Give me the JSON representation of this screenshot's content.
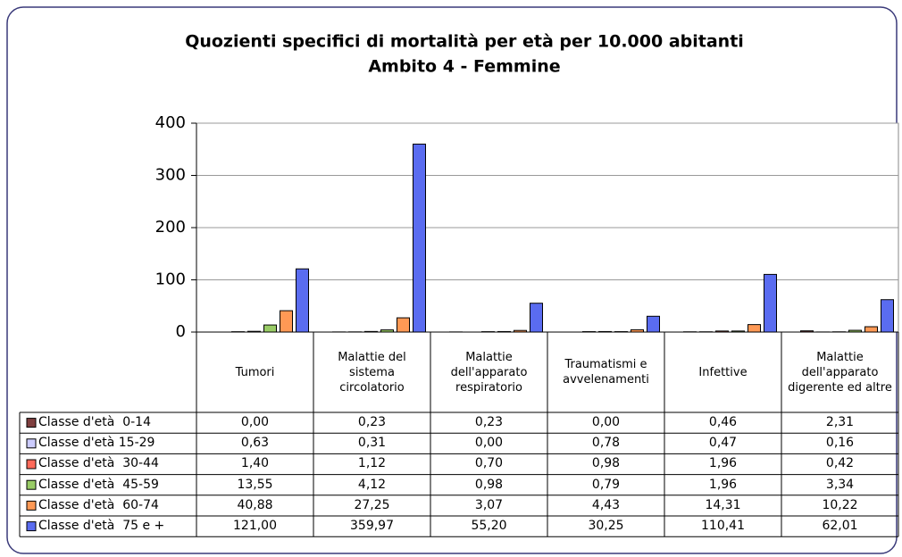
{
  "chart_data": {
    "type": "bar",
    "title": "Quozienti specifici di mortalità per età per 10.000 abitanti",
    "subtitle": "Ambito 4 - Femmine",
    "categories": [
      "Tumori",
      "Malattie del sistema circolatorio",
      "Malattie dell'apparato respiratorio",
      "Traumatismi e avvelenamenti",
      "Infettive",
      "Malattie dell'apparato digerente ed altre"
    ],
    "series": [
      {
        "name": "Classe d'età  0-14",
        "color": "#7f3f3f",
        "values": [
          0,
          0.23,
          0.23,
          0,
          0.46,
          2.31
        ],
        "value_labels": [
          "0,00",
          "0,23",
          "0,23",
          "0,00",
          "0,46",
          "2,31"
        ]
      },
      {
        "name": "Classe d'età 15-29",
        "color": "#ccccff",
        "values": [
          0.63,
          0.31,
          0,
          0.78,
          0.47,
          0.16
        ],
        "value_labels": [
          "0,63",
          "0,31",
          "0,00",
          "0,78",
          "0,47",
          "0,16"
        ]
      },
      {
        "name": "Classe d'età  30-44",
        "color": "#ff6a5a",
        "values": [
          1.4,
          1.12,
          0.7,
          0.98,
          1.96,
          0.42
        ],
        "value_labels": [
          "1,40",
          "1,12",
          "0,70",
          "0,98",
          "1,96",
          "0,42"
        ]
      },
      {
        "name": "Classe d'età  45-59",
        "color": "#99cc66",
        "values": [
          13.55,
          4.12,
          0.98,
          0.79,
          1.96,
          3.34
        ],
        "value_labels": [
          "13,55",
          "4,12",
          "0,98",
          "0,79",
          "1,96",
          "3,34"
        ]
      },
      {
        "name": "Classe d'età  60-74",
        "color": "#ff9955",
        "values": [
          40.88,
          27.25,
          3.07,
          4.43,
          14.31,
          10.22
        ],
        "value_labels": [
          "40,88",
          "27,25",
          "3,07",
          "4,43",
          "14,31",
          "10,22"
        ]
      },
      {
        "name": "Classe d'età  75 e +",
        "color": "#5a6cf0",
        "values": [
          121,
          359.97,
          55.2,
          30.25,
          110.41,
          62.01
        ],
        "value_labels": [
          "121,00",
          "359,97",
          "55,20",
          "30,25",
          "110,41",
          "62,01"
        ]
      }
    ],
    "ylim": [
      0,
      400
    ],
    "yticks": [
      0,
      100,
      200,
      300,
      400
    ],
    "grid": true
  }
}
